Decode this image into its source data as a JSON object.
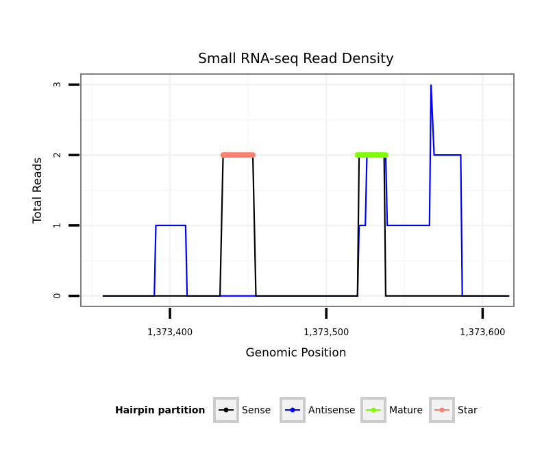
{
  "chart_data": {
    "type": "line",
    "title": "Small RNA-seq Read Density",
    "xlabel": "Genomic Position",
    "ylabel": "Total Reads",
    "xlim": [
      1373343,
      1373620
    ],
    "ylim": [
      -0.15,
      3.15
    ],
    "x_ticks": [
      1373400,
      1373500,
      1373600
    ],
    "x_tick_labels": [
      "1,373,400",
      "1,373,500",
      "1,373,600"
    ],
    "y_ticks": [
      0,
      1,
      2,
      3
    ],
    "y_tick_labels": [
      "0",
      "1",
      "2",
      "3"
    ],
    "grid": true,
    "legend": {
      "title": "Hairpin partition",
      "position": "bottom",
      "entries": [
        {
          "name": "Sense",
          "color": "#000000"
        },
        {
          "name": "Antisense",
          "color": "#0000ff"
        },
        {
          "name": "Mature",
          "color": "#7fff00"
        },
        {
          "name": "Star",
          "color": "#fa8072"
        }
      ]
    },
    "series": [
      {
        "name": "Sense",
        "color": "#000000",
        "kind": "line",
        "x": [
          1373357,
          1373432,
          1373434,
          1373453,
          1373455,
          1373520,
          1373521,
          1373537,
          1373538,
          1373617
        ],
        "y": [
          0,
          0,
          2,
          2,
          0,
          0,
          2,
          2,
          0,
          0
        ]
      },
      {
        "name": "Antisense",
        "color": "#0000ff",
        "kind": "line",
        "x": [
          1373357,
          1373390,
          1373391,
          1373410,
          1373411,
          1373520,
          1373521,
          1373525,
          1373526,
          1373538,
          1373539,
          1373555,
          1373566,
          1373567,
          1373569,
          1373586,
          1373587,
          1373617
        ],
        "y": [
          0,
          0,
          1,
          1,
          0,
          0,
          1,
          1,
          2,
          2,
          1,
          1,
          1,
          3,
          2,
          2,
          0,
          0
        ]
      },
      {
        "name": "Mature",
        "color": "#7fff00",
        "kind": "segment",
        "x": [
          1373520,
          1373538
        ],
        "y": [
          2,
          2
        ]
      },
      {
        "name": "Star",
        "color": "#fa8072",
        "kind": "segment",
        "x": [
          1373434,
          1373453
        ],
        "y": [
          2,
          2
        ]
      }
    ]
  }
}
